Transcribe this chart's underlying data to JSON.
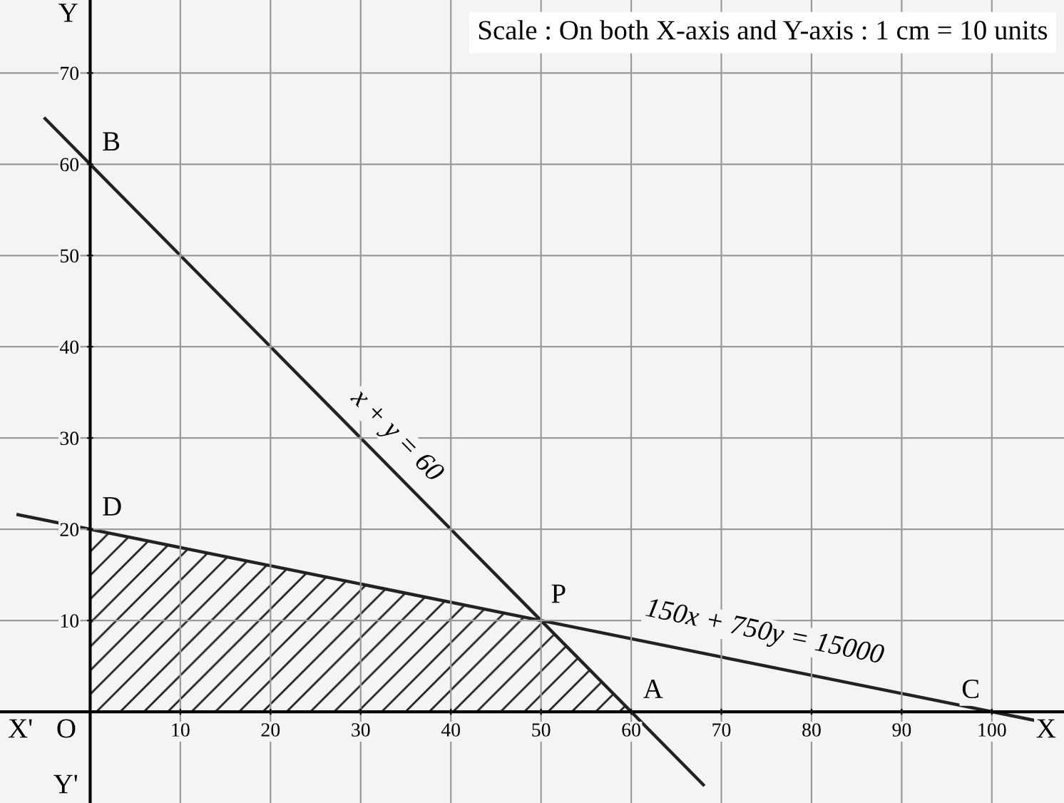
{
  "chart_data": {
    "type": "line",
    "xlim": [
      -10,
      108
    ],
    "ylim": [
      -10,
      78
    ],
    "xticks": [
      10,
      20,
      30,
      40,
      50,
      60,
      70,
      80,
      90,
      100
    ],
    "yticks": [
      10,
      20,
      30,
      40,
      50,
      60,
      70
    ],
    "grid": true,
    "series": [
      {
        "type": "area",
        "x": [
          0,
          50,
          60
        ],
        "values": [
          20,
          10,
          0
        ],
        "color": "#222222"
      },
      {
        "x": [
          -5,
          68
        ],
        "values": [
          65,
          -8
        ],
        "color": "#222222"
      },
      {
        "x": [
          -8,
          105
        ],
        "values": [
          21.6,
          -1
        ],
        "color": "#222222"
      }
    ],
    "annotations": [
      {
        "text": "B",
        "x": 0,
        "y": 60
      },
      {
        "text": "D",
        "x": 0,
        "y": 20
      },
      {
        "text": "P",
        "x": 50,
        "y": 10
      },
      {
        "text": "A",
        "x": 60,
        "y": 0
      },
      {
        "text": "C",
        "x": 100,
        "y": 0
      },
      "x + y = 60",
      "150x + 750y = 15000",
      "O",
      "X'",
      "X",
      "Y",
      "Y'",
      "Scale : On both X-axis and Y-axis : 1 cm = 10 units"
    ]
  }
}
